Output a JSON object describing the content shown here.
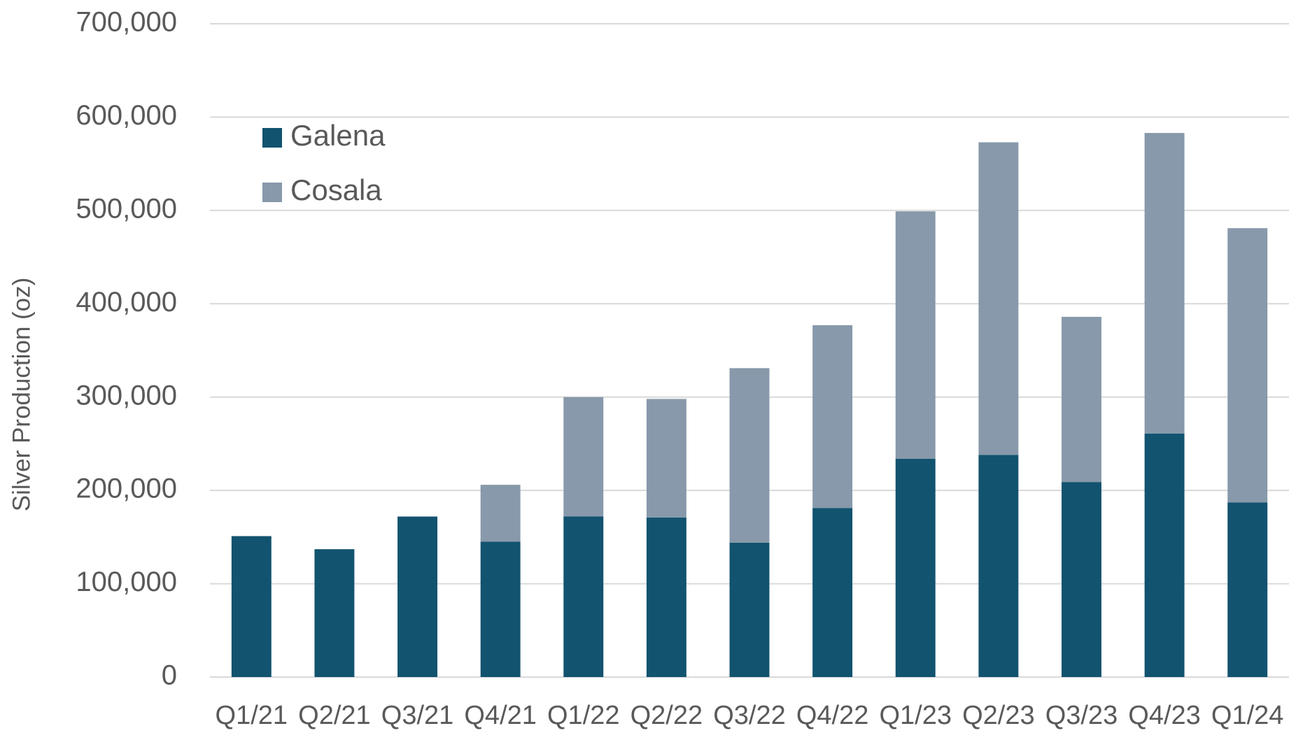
{
  "chart_data": {
    "type": "stacked_bar",
    "y_label": "Silver Production (oz)",
    "categories": [
      "Q1/21",
      "Q2/21",
      "Q3/21",
      "Q4/21",
      "Q1/22",
      "Q2/22",
      "Q3/22",
      "Q4/22",
      "Q1/23",
      "Q2/23",
      "Q3/23",
      "Q4/23",
      "Q1/24"
    ],
    "series": [
      {
        "name": "Galena",
        "color": "#12536f",
        "values": [
          151000,
          137000,
          172000,
          145000,
          172000,
          171000,
          144000,
          181000,
          234000,
          238000,
          209000,
          261000,
          187000
        ]
      },
      {
        "name": "Cosala",
        "color": "#8799aa",
        "values": [
          0,
          0,
          0,
          61000,
          128000,
          127000,
          187000,
          196000,
          265000,
          335000,
          177000,
          322000,
          294000
        ]
      }
    ],
    "ylim": [
      0,
      700000
    ],
    "yticks": [
      0,
      {
        "value": 100000,
        "label": "100,000"
      },
      {
        "value": 200000,
        "label": "200,000"
      },
      {
        "value": 300000,
        "label": "300,000"
      },
      {
        "value": 400000,
        "label": "400,000"
      },
      {
        "value": 500000,
        "label": "500,000"
      },
      {
        "value": 600000,
        "label": "600,000"
      },
      {
        "value": 700000,
        "label": "700,000"
      }
    ],
    "grid": true,
    "legend": "top-left"
  }
}
